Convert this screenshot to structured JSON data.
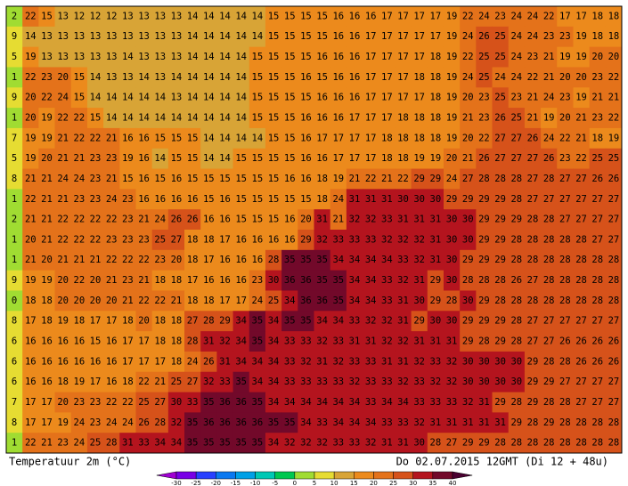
{
  "map": {
    "grid": [
      [
        2,
        22,
        15,
        13,
        12,
        12,
        12,
        13,
        13,
        13,
        13,
        14,
        14,
        14,
        14,
        14,
        15,
        15,
        15,
        15,
        16,
        16,
        16,
        17,
        17,
        17,
        17,
        19,
        22,
        24,
        23,
        24,
        24,
        22,
        17,
        17,
        18,
        18
      ],
      [
        9,
        14,
        13,
        13,
        13,
        13,
        13,
        13,
        13,
        13,
        13,
        14,
        14,
        14,
        14,
        14,
        15,
        15,
        15,
        15,
        16,
        16,
        17,
        17,
        17,
        17,
        17,
        19,
        24,
        26,
        25,
        24,
        24,
        23,
        23,
        19,
        18,
        18
      ],
      [
        5,
        19,
        13,
        13,
        13,
        13,
        13,
        14,
        13,
        13,
        13,
        14,
        14,
        14,
        14,
        15,
        15,
        15,
        15,
        16,
        16,
        16,
        17,
        17,
        17,
        17,
        18,
        19,
        22,
        25,
        25,
        24,
        23,
        21,
        19,
        19,
        20,
        20
      ],
      [
        1,
        22,
        23,
        20,
        15,
        14,
        13,
        13,
        14,
        13,
        14,
        14,
        14,
        14,
        14,
        15,
        15,
        15,
        16,
        15,
        16,
        16,
        17,
        17,
        17,
        18,
        18,
        19,
        24,
        25,
        24,
        24,
        22,
        21,
        20,
        20,
        23,
        22
      ],
      [
        9,
        20,
        22,
        24,
        15,
        14,
        14,
        14,
        14,
        14,
        13,
        14,
        14,
        14,
        14,
        15,
        15,
        15,
        15,
        16,
        16,
        16,
        17,
        17,
        17,
        17,
        18,
        19,
        20,
        23,
        25,
        23,
        21,
        24,
        23,
        19,
        21,
        21
      ],
      [
        1,
        20,
        19,
        22,
        22,
        15,
        14,
        14,
        14,
        14,
        14,
        14,
        14,
        14,
        14,
        15,
        15,
        15,
        16,
        16,
        16,
        17,
        17,
        17,
        18,
        18,
        18,
        19,
        21,
        23,
        26,
        25,
        21,
        19,
        20,
        21,
        23,
        22
      ],
      [
        7,
        19,
        19,
        21,
        22,
        22,
        21,
        16,
        16,
        15,
        15,
        15,
        14,
        14,
        14,
        14,
        15,
        15,
        16,
        17,
        17,
        17,
        17,
        18,
        18,
        18,
        18,
        19,
        20,
        22,
        27,
        27,
        26,
        24,
        22,
        21,
        18,
        19
      ],
      [
        5,
        19,
        20,
        21,
        21,
        23,
        23,
        19,
        16,
        14,
        15,
        15,
        14,
        14,
        15,
        15,
        15,
        15,
        16,
        16,
        17,
        17,
        17,
        18,
        18,
        19,
        19,
        20,
        21,
        26,
        27,
        27,
        27,
        26,
        23,
        22,
        25,
        25
      ],
      [
        8,
        21,
        21,
        24,
        24,
        23,
        21,
        15,
        16,
        15,
        16,
        15,
        15,
        15,
        15,
        15,
        15,
        16,
        16,
        18,
        19,
        21,
        22,
        21,
        22,
        29,
        29,
        24,
        27,
        28,
        28,
        28,
        27,
        28,
        27,
        27,
        26,
        26
      ],
      [
        1,
        22,
        21,
        21,
        23,
        23,
        24,
        23,
        16,
        16,
        16,
        16,
        15,
        16,
        15,
        15,
        15,
        15,
        15,
        18,
        24,
        31,
        31,
        31,
        30,
        30,
        30,
        29,
        29,
        29,
        29,
        28,
        27,
        27,
        27,
        27,
        27,
        27
      ],
      [
        2,
        21,
        21,
        22,
        22,
        22,
        22,
        23,
        21,
        24,
        26,
        26,
        16,
        16,
        15,
        15,
        15,
        16,
        20,
        31,
        21,
        32,
        32,
        33,
        31,
        31,
        31,
        30,
        30,
        29,
        29,
        29,
        28,
        28,
        27,
        27,
        27,
        27
      ],
      [
        1,
        20,
        21,
        22,
        22,
        22,
        23,
        23,
        23,
        25,
        27,
        18,
        18,
        17,
        16,
        16,
        16,
        16,
        29,
        32,
        33,
        33,
        33,
        32,
        32,
        32,
        31,
        30,
        30,
        29,
        29,
        28,
        28,
        28,
        28,
        28,
        27,
        27
      ],
      [
        1,
        21,
        20,
        21,
        21,
        21,
        22,
        22,
        22,
        23,
        20,
        18,
        17,
        16,
        16,
        16,
        28,
        35,
        35,
        35,
        34,
        34,
        34,
        34,
        33,
        32,
        31,
        30,
        29,
        29,
        29,
        28,
        28,
        28,
        28,
        28,
        28,
        28
      ],
      [
        9,
        19,
        19,
        20,
        22,
        20,
        21,
        23,
        21,
        18,
        18,
        17,
        16,
        16,
        16,
        23,
        30,
        36,
        36,
        35,
        35,
        34,
        34,
        33,
        32,
        31,
        29,
        30,
        28,
        28,
        28,
        26,
        27,
        28,
        28,
        28,
        28,
        28
      ],
      [
        0,
        18,
        18,
        20,
        20,
        20,
        20,
        21,
        22,
        22,
        21,
        18,
        18,
        17,
        17,
        24,
        25,
        34,
        36,
        36,
        35,
        34,
        34,
        33,
        31,
        30,
        29,
        28,
        30,
        29,
        28,
        28,
        28,
        28,
        28,
        28,
        28,
        28
      ],
      [
        8,
        17,
        18,
        19,
        18,
        17,
        17,
        18,
        20,
        18,
        18,
        27,
        28,
        29,
        34,
        35,
        34,
        35,
        35,
        34,
        34,
        33,
        32,
        32,
        31,
        29,
        30,
        30,
        29,
        29,
        29,
        28,
        27,
        27,
        27,
        27,
        27,
        27
      ],
      [
        6,
        16,
        16,
        16,
        16,
        15,
        16,
        17,
        17,
        18,
        18,
        28,
        31,
        32,
        34,
        35,
        34,
        33,
        33,
        32,
        33,
        31,
        31,
        32,
        32,
        31,
        31,
        31,
        29,
        28,
        29,
        28,
        27,
        27,
        26,
        26,
        26,
        26
      ],
      [
        6,
        16,
        16,
        16,
        16,
        16,
        16,
        17,
        17,
        17,
        18,
        24,
        26,
        31,
        34,
        34,
        34,
        33,
        32,
        31,
        32,
        33,
        33,
        31,
        31,
        32,
        33,
        32,
        30,
        30,
        30,
        30,
        29,
        28,
        28,
        26,
        26,
        26
      ],
      [
        6,
        16,
        16,
        18,
        19,
        17,
        16,
        18,
        22,
        21,
        25,
        27,
        32,
        33,
        35,
        34,
        34,
        33,
        33,
        33,
        33,
        32,
        33,
        33,
        32,
        33,
        32,
        32,
        30,
        30,
        30,
        30,
        29,
        29,
        27,
        27,
        27,
        27
      ],
      [
        7,
        17,
        17,
        20,
        23,
        23,
        22,
        22,
        25,
        27,
        30,
        33,
        35,
        36,
        36,
        35,
        34,
        34,
        34,
        34,
        34,
        34,
        33,
        34,
        34,
        33,
        33,
        33,
        32,
        31,
        29,
        28,
        29,
        28,
        28,
        27,
        27,
        27
      ],
      [
        8,
        17,
        17,
        19,
        24,
        23,
        24,
        24,
        26,
        28,
        32,
        35,
        36,
        36,
        36,
        36,
        35,
        35,
        34,
        33,
        34,
        34,
        34,
        33,
        33,
        32,
        31,
        31,
        31,
        31,
        31,
        29,
        28,
        29,
        28,
        28,
        28,
        28
      ],
      [
        1,
        22,
        21,
        23,
        24,
        25,
        28,
        31,
        33,
        34,
        34,
        35,
        35,
        35,
        35,
        35,
        34,
        32,
        32,
        32,
        33,
        33,
        32,
        31,
        31,
        30,
        28,
        27,
        29,
        29,
        28,
        28,
        28,
        28,
        28,
        28,
        28,
        28
      ]
    ]
  },
  "colorbar": {
    "ticks": [
      -30,
      -25,
      -20,
      -15,
      -10,
      -5,
      0,
      5,
      10,
      15,
      20,
      25,
      30,
      35,
      40
    ],
    "colors": [
      "#a000d2",
      "#7800e6",
      "#2840ff",
      "#0a78f0",
      "#00a0e6",
      "#00c8b4",
      "#00c850",
      "#a0dc32",
      "#e6dc32",
      "#d8a436",
      "#ec8a1c",
      "#e4721a",
      "#d6521a",
      "#b4141e",
      "#72092a",
      "#4a0030"
    ]
  },
  "footer": {
    "left": "Temperatuur 2m (°C)",
    "right": "Do 02.07.2015 12GMT (Di 12 + 48u)"
  }
}
